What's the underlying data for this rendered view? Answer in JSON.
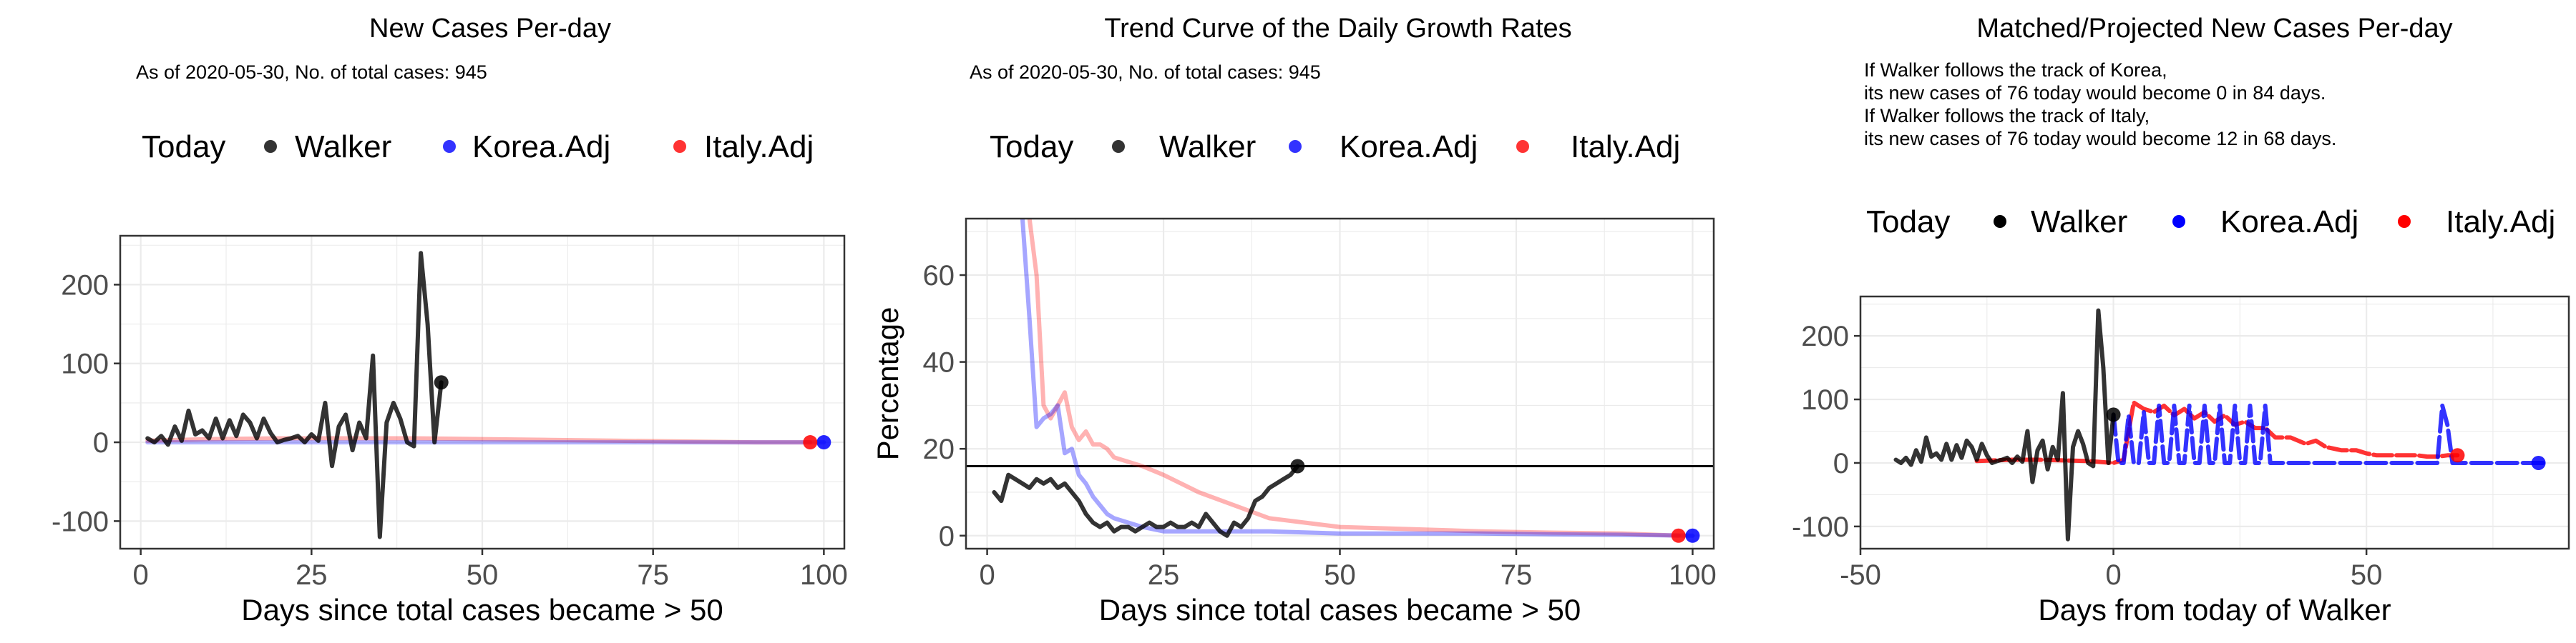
{
  "colors": {
    "today": "#000000",
    "walker": "#000000",
    "korea": "#0000ff",
    "italy": "#ff0000",
    "grid": "#ebebeb",
    "refline": "#000000"
  },
  "chart_data": [
    {
      "type": "line",
      "title": "New Cases Per-day",
      "subtitle": "As of 2020-05-30, No. of total cases: 945",
      "legend": {
        "position": "top",
        "title": "Today",
        "entries": [
          "Walker",
          "Korea.Adj",
          "Italy.Adj"
        ]
      },
      "xlabel": "Days since total cases became > 50",
      "ylabel": "",
      "xlim": [
        -3,
        103
      ],
      "ylim": [
        -135,
        262
      ],
      "xticks": [
        0,
        25,
        50,
        75,
        100
      ],
      "yticks": [
        -100,
        0,
        100,
        200
      ],
      "grid": true,
      "series": [
        {
          "name": "Walker",
          "x": [
            1,
            2,
            3,
            4,
            5,
            6,
            7,
            8,
            9,
            10,
            11,
            12,
            13,
            14,
            15,
            16,
            17,
            18,
            19,
            20,
            21,
            22,
            23,
            24,
            25,
            26,
            27,
            28,
            29,
            30,
            31,
            32,
            33,
            34,
            35,
            36,
            37,
            38,
            39,
            40,
            41,
            42,
            43,
            44
          ],
          "y": [
            5,
            0,
            8,
            -3,
            20,
            2,
            40,
            10,
            15,
            5,
            30,
            5,
            28,
            8,
            35,
            25,
            5,
            30,
            12,
            0,
            3,
            5,
            8,
            0,
            10,
            2,
            50,
            -30,
            20,
            35,
            -10,
            25,
            5,
            110,
            -120,
            25,
            50,
            30,
            0,
            -5,
            240,
            150,
            0,
            76
          ]
        },
        {
          "name": "Korea.Adj",
          "x": [
            1,
            10,
            20,
            30,
            40,
            50,
            60,
            70,
            80,
            90,
            100
          ],
          "y": [
            0,
            0,
            0,
            0,
            0,
            0,
            0,
            0,
            0,
            0,
            0
          ]
        },
        {
          "name": "Italy.Adj",
          "x": [
            1,
            10,
            20,
            30,
            40,
            50,
            60,
            70,
            80,
            90,
            98
          ],
          "y": [
            2,
            4,
            5,
            5,
            5,
            4,
            3,
            2,
            1,
            0,
            0
          ]
        }
      ],
      "points": [
        {
          "series": "Walker",
          "x": 44,
          "y": 76
        },
        {
          "series": "Korea.Adj",
          "x": 100,
          "y": 0
        },
        {
          "series": "Italy.Adj",
          "x": 98,
          "y": 0
        }
      ]
    },
    {
      "type": "line",
      "title": "Trend Curve of the Daily Growth Rates",
      "subtitle": "As of 2020-05-30, No. of total cases: 945",
      "legend": {
        "position": "top",
        "title": "Today",
        "entries": [
          "Walker",
          "Korea.Adj",
          "Italy.Adj"
        ]
      },
      "xlabel": "Days since total cases became > 50",
      "ylabel": "Percentage",
      "xlim": [
        -3,
        103
      ],
      "ylim": [
        -3,
        73
      ],
      "xticks": [
        0,
        25,
        50,
        75,
        100
      ],
      "yticks": [
        0,
        20,
        40,
        60
      ],
      "grid": true,
      "hline": 16,
      "series": [
        {
          "name": "Walker",
          "x": [
            1,
            2,
            3,
            4,
            5,
            6,
            7,
            8,
            9,
            10,
            11,
            12,
            13,
            14,
            15,
            16,
            17,
            18,
            19,
            20,
            21,
            22,
            23,
            24,
            25,
            26,
            27,
            28,
            29,
            30,
            31,
            32,
            33,
            34,
            35,
            36,
            37,
            38,
            39,
            40,
            41,
            42,
            43,
            44
          ],
          "y": [
            10,
            8,
            14,
            13,
            12,
            11,
            13,
            12,
            13,
            11,
            12,
            10,
            8,
            5,
            3,
            2,
            3,
            1,
            2,
            2,
            1,
            2,
            3,
            2,
            2,
            3,
            2,
            2,
            3,
            2,
            5,
            3,
            1,
            0,
            3,
            2,
            4,
            8,
            9,
            11,
            12,
            13,
            14,
            16
          ]
        },
        {
          "name": "Korea.Adj",
          "x": [
            5,
            6,
            7,
            8,
            9,
            10,
            11,
            12,
            13,
            14,
            15,
            16,
            17,
            18,
            20,
            22,
            25,
            30,
            35,
            40,
            50,
            60,
            70,
            80,
            90,
            100
          ],
          "y": [
            73,
            50,
            25,
            27,
            28,
            30,
            19,
            20,
            14,
            12,
            9,
            7,
            5,
            4,
            3,
            2,
            1,
            1,
            1,
            1,
            0.5,
            0.5,
            0.5,
            0.3,
            0.2,
            0
          ]
        },
        {
          "name": "Italy.Adj",
          "x": [
            6,
            7,
            8,
            9,
            10,
            11,
            12,
            13,
            14,
            15,
            16,
            17,
            18,
            20,
            22,
            25,
            30,
            35,
            40,
            45,
            50,
            60,
            70,
            80,
            90,
            98
          ],
          "y": [
            73,
            60,
            30,
            27,
            30,
            33,
            25,
            22,
            24,
            21,
            21,
            20,
            18,
            17,
            16,
            14,
            10,
            7,
            4,
            3,
            2,
            1.5,
            1,
            0.7,
            0.5,
            0
          ]
        }
      ],
      "points": [
        {
          "series": "Walker",
          "x": 44,
          "y": 16
        },
        {
          "series": "Korea.Adj",
          "x": 100,
          "y": 0
        },
        {
          "series": "Italy.Adj",
          "x": 98,
          "y": 0
        }
      ]
    },
    {
      "type": "line",
      "title": "Matched/Projected New Cases Per-day",
      "notes": [
        "If Walker follows the track of Korea,",
        "its new cases of 76 today would become 0 in 84 days.",
        "If Walker follows the track of Italy,",
        "its new cases of 76 today would become 12 in 68 days."
      ],
      "legend": {
        "position": "top",
        "title": "Today",
        "entries": [
          "Walker",
          "Korea.Adj",
          "Italy.Adj"
        ]
      },
      "xlabel": "Days from today of Walker",
      "ylabel": "",
      "xlim": [
        -50,
        90
      ],
      "ylim": [
        -135,
        262
      ],
      "xticks": [
        -50,
        0,
        50
      ],
      "yticks": [
        -100,
        0,
        100,
        200
      ],
      "grid": true,
      "series": [
        {
          "name": "Walker",
          "x": [
            -43,
            -42,
            -41,
            -40,
            -39,
            -38,
            -37,
            -36,
            -35,
            -34,
            -33,
            -32,
            -31,
            -30,
            -29,
            -28,
            -27,
            -26,
            -25,
            -24,
            -23,
            -22,
            -21,
            -20,
            -19,
            -18,
            -17,
            -16,
            -15,
            -14,
            -13,
            -12,
            -11,
            -10,
            -9,
            -8,
            -7,
            -6,
            -5,
            -4,
            -3,
            -2,
            -1,
            0
          ],
          "y": [
            5,
            0,
            8,
            -3,
            20,
            2,
            40,
            10,
            15,
            5,
            30,
            5,
            28,
            8,
            35,
            25,
            5,
            30,
            12,
            0,
            3,
            5,
            8,
            0,
            10,
            2,
            50,
            -30,
            20,
            35,
            -10,
            25,
            5,
            110,
            -120,
            25,
            50,
            30,
            0,
            -5,
            240,
            150,
            0,
            76
          ]
        },
        {
          "name": "Korea.Adj",
          "x": [
            0,
            1,
            2,
            3,
            4,
            5,
            6,
            7,
            8,
            9,
            10,
            11,
            12,
            13,
            14,
            15,
            16,
            17,
            18,
            19,
            20,
            21,
            22,
            23,
            24,
            25,
            26,
            27,
            28,
            29,
            30,
            31,
            32,
            40,
            50,
            60,
            64,
            65,
            66,
            67,
            68,
            70,
            85
          ],
          "y": [
            76,
            0,
            0,
            75,
            0,
            0,
            80,
            0,
            0,
            90,
            0,
            0,
            90,
            0,
            0,
            90,
            0,
            0,
            90,
            0,
            0,
            90,
            0,
            0,
            90,
            0,
            0,
            90,
            0,
            0,
            90,
            0,
            0,
            0,
            0,
            0,
            0,
            90,
            60,
            0,
            0,
            0,
            0
          ]
        },
        {
          "name": "Italy.Adj",
          "x": [
            -27,
            -20,
            -15,
            -10,
            -5,
            0,
            2,
            4,
            6,
            8,
            10,
            12,
            14,
            16,
            18,
            20,
            22,
            24,
            26,
            28,
            30,
            32,
            35,
            38,
            40,
            42,
            45,
            48,
            50,
            52,
            55,
            58,
            60,
            62,
            64,
            66,
            68
          ],
          "y": [
            3,
            5,
            5,
            4,
            3,
            0,
            5,
            95,
            85,
            80,
            90,
            75,
            85,
            70,
            80,
            65,
            75,
            60,
            65,
            55,
            55,
            40,
            40,
            30,
            35,
            25,
            20,
            20,
            15,
            12,
            12,
            12,
            12,
            10,
            10,
            12,
            12
          ]
        }
      ],
      "points": [
        {
          "series": "Walker",
          "x": 0,
          "y": 76
        },
        {
          "series": "Korea.Adj",
          "x": 84,
          "y": 0
        },
        {
          "series": "Italy.Adj",
          "x": 68,
          "y": 12
        }
      ]
    }
  ]
}
